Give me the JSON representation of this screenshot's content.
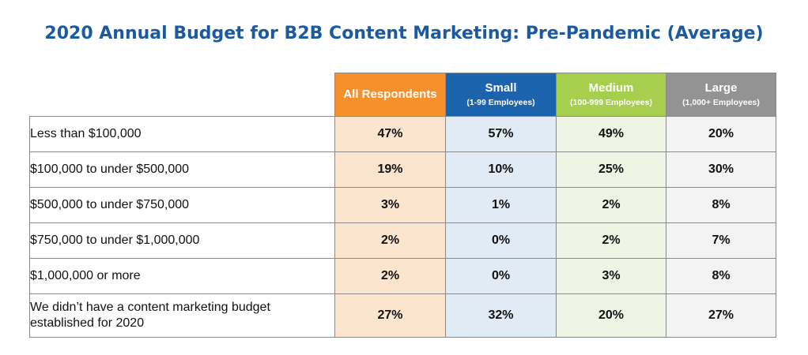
{
  "chart_data": {
    "type": "table",
    "title": "2020 Annual Budget for B2B Content Marketing: Pre-Pandemic (Average)",
    "columns": [
      {
        "name": "All Respondents",
        "sub": "",
        "color": "#f5902b",
        "cell_color": "#fce5cf"
      },
      {
        "name": "Small",
        "sub": "(1-99 Employees)",
        "color": "#1c63ad",
        "cell_color": "#e1ebf6"
      },
      {
        "name": "Medium",
        "sub": "(100-999 Employees)",
        "color": "#a7cf4d",
        "cell_color": "#eef5e4"
      },
      {
        "name": "Large",
        "sub": "(1,000+ Employees)",
        "color": "#939393",
        "cell_color": "#f3f3f3"
      }
    ],
    "rows": [
      {
        "label": "Less than $100,000",
        "values": [
          "47%",
          "57%",
          "49%",
          "20%"
        ]
      },
      {
        "label": "$100,000 to under $500,000",
        "values": [
          "19%",
          "10%",
          "25%",
          "30%"
        ]
      },
      {
        "label": "$500,000 to under $750,000",
        "values": [
          "3%",
          "1%",
          "2%",
          "8%"
        ]
      },
      {
        "label": "$750,000 to under $1,000,000",
        "values": [
          "2%",
          "0%",
          "2%",
          "7%"
        ]
      },
      {
        "label": "$1,000,000 or more",
        "values": [
          "2%",
          "0%",
          "3%",
          "8%"
        ]
      },
      {
        "label": "We didn’t have a content marketing budget established for 2020",
        "values": [
          "27%",
          "32%",
          "20%",
          "27%"
        ]
      }
    ],
    "title_color": "#1a5aa0"
  }
}
